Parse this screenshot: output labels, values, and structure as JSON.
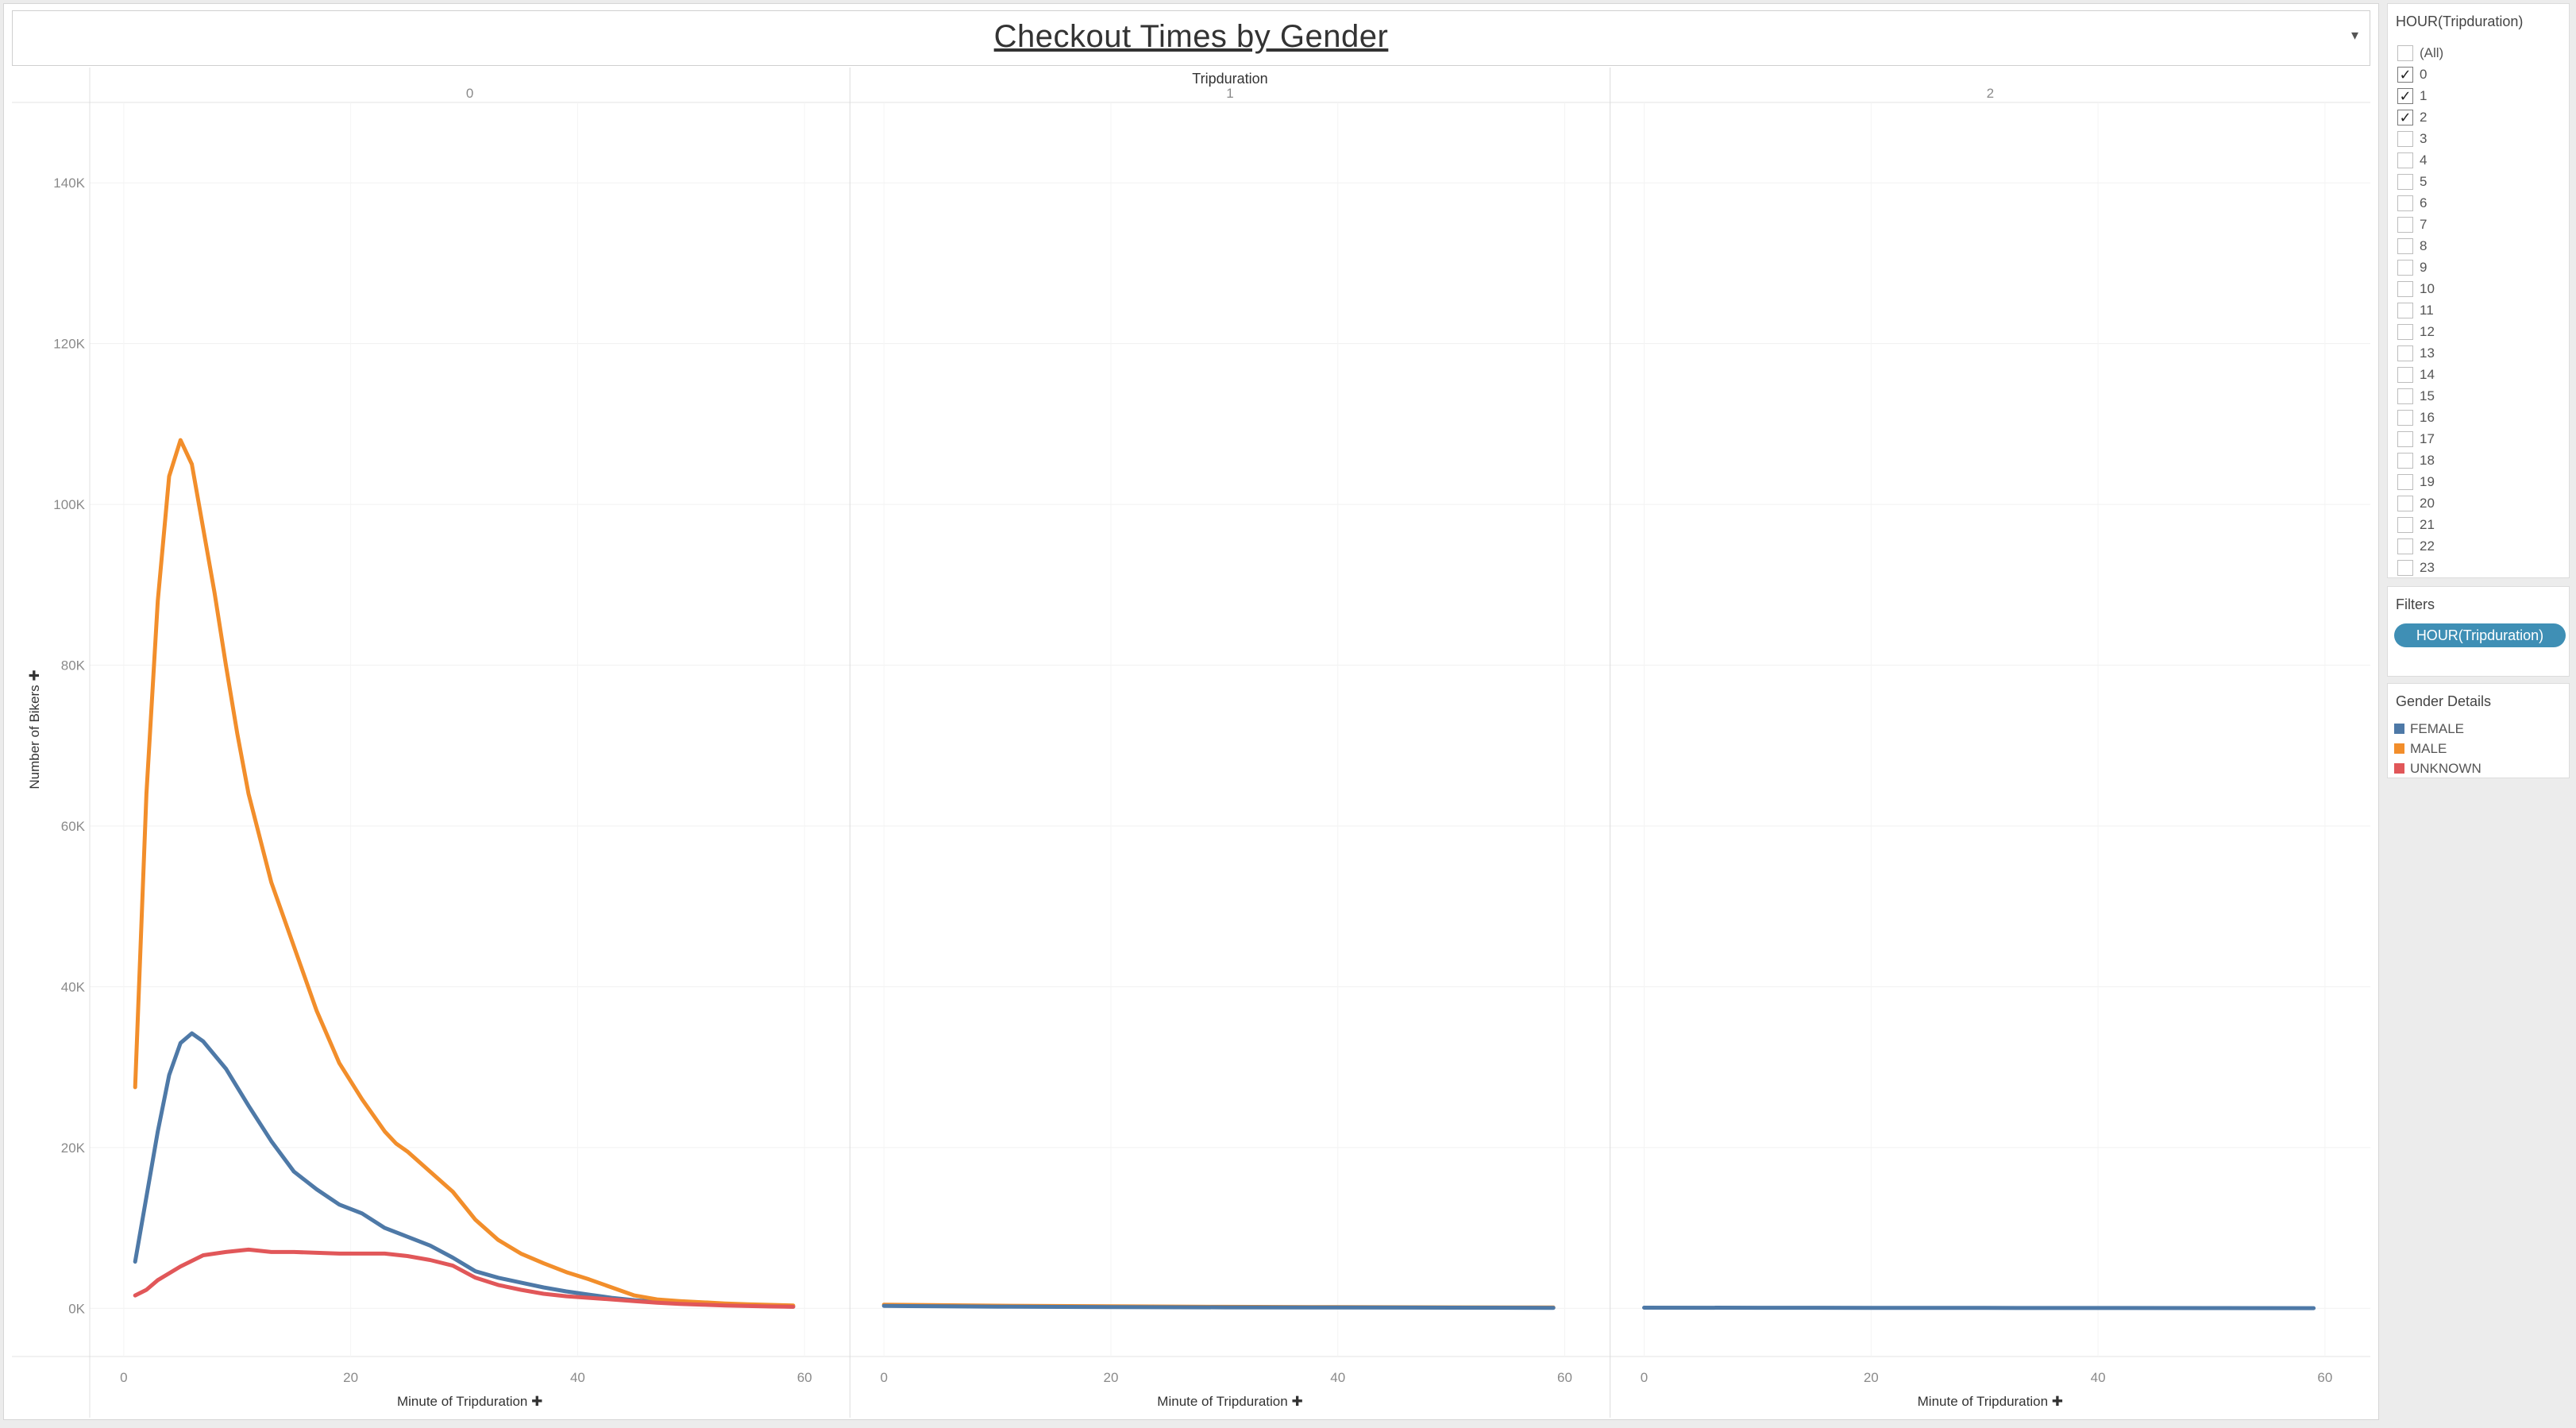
{
  "dashboard": {
    "title": "Checkout Times by Gender",
    "menu_glyph": "▾"
  },
  "chart_data": {
    "type": "line",
    "column_header": "Tripduration",
    "panels": [
      "0",
      "1",
      "2"
    ],
    "xlabel": "Minute of Tripduration",
    "ylabel": "Number of Bikers",
    "xlim": [
      -3,
      64
    ],
    "xticks": [
      0,
      20,
      40,
      60
    ],
    "ylim": [
      -6000,
      150000
    ],
    "yticks": [
      0,
      20000,
      40000,
      60000,
      80000,
      100000,
      120000,
      140000
    ],
    "ytick_labels": [
      "0K",
      "20K",
      "40K",
      "60K",
      "80K",
      "100K",
      "120K",
      "140K"
    ],
    "grid": true,
    "legend_position": "right",
    "series": [
      {
        "name": "FEMALE",
        "color": "#4e79a7",
        "panel": "0",
        "x": [
          1,
          3,
          4,
          5,
          6,
          7,
          9,
          11,
          13,
          15,
          17,
          19,
          21,
          23,
          25,
          27,
          29,
          31,
          33,
          35,
          37,
          39,
          41,
          43,
          45,
          47,
          49,
          51,
          53,
          55,
          57,
          59
        ],
        "y": [
          5800,
          22000,
          29000,
          33000,
          34200,
          33200,
          29800,
          25200,
          20800,
          17000,
          14800,
          12900,
          11800,
          10000,
          8900,
          7800,
          6300,
          4600,
          3800,
          3200,
          2600,
          2100,
          1700,
          1300,
          1000,
          800,
          620,
          500,
          400,
          330,
          260,
          200
        ]
      },
      {
        "name": "MALE",
        "color": "#f28e2b",
        "panel": "0",
        "x": [
          1,
          2,
          3,
          4,
          5,
          6,
          7,
          8,
          9,
          10,
          11,
          13,
          15,
          17,
          19,
          21,
          22,
          23,
          24,
          25,
          27,
          29,
          31,
          33,
          35,
          37,
          39,
          41,
          43,
          45,
          47,
          49,
          51,
          53,
          55,
          57,
          59
        ],
        "y": [
          27500,
          64000,
          88000,
          103500,
          108000,
          105000,
          97000,
          89000,
          80000,
          71500,
          64000,
          53000,
          45000,
          37000,
          30500,
          26000,
          24000,
          22000,
          20500,
          19500,
          17000,
          14500,
          11000,
          8500,
          6800,
          5600,
          4500,
          3600,
          2600,
          1600,
          1100,
          900,
          750,
          600,
          500,
          420,
          350
        ]
      },
      {
        "name": "UNKNOWN",
        "color": "#e15759",
        "panel": "0",
        "x": [
          1,
          2,
          3,
          5,
          7,
          9,
          11,
          13,
          15,
          17,
          19,
          21,
          23,
          25,
          27,
          29,
          31,
          33,
          35,
          37,
          39,
          41,
          43,
          45,
          47,
          49,
          51,
          53,
          55,
          57,
          59
        ],
        "y": [
          1600,
          2300,
          3500,
          5200,
          6600,
          7000,
          7300,
          7000,
          7000,
          6900,
          6800,
          6800,
          6800,
          6500,
          6000,
          5300,
          3800,
          2900,
          2300,
          1800,
          1500,
          1300,
          1100,
          900,
          700,
          550,
          450,
          350,
          280,
          220,
          180
        ]
      },
      {
        "name": "MALE",
        "color": "#f28e2b",
        "panel": "1",
        "x": [
          0,
          5,
          10,
          20,
          30,
          40,
          50,
          59
        ],
        "y": [
          450,
          380,
          320,
          240,
          180,
          150,
          120,
          100
        ]
      },
      {
        "name": "FEMALE",
        "color": "#4e79a7",
        "panel": "1",
        "x": [
          0,
          5,
          10,
          20,
          30,
          40,
          50,
          59
        ],
        "y": [
          300,
          240,
          200,
          150,
          120,
          100,
          80,
          60
        ]
      },
      {
        "name": "FEMALE",
        "color": "#4e79a7",
        "panel": "2",
        "x": [
          0,
          10,
          20,
          30,
          40,
          50,
          59
        ],
        "y": [
          80,
          70,
          60,
          50,
          40,
          30,
          20
        ]
      }
    ]
  },
  "sidebar": {
    "hour_filter": {
      "title": "HOUR(Tripduration)",
      "check_glyph": "✓",
      "items": [
        {
          "label": "(All)",
          "checked": false
        },
        {
          "label": "0",
          "checked": true
        },
        {
          "label": "1",
          "checked": true
        },
        {
          "label": "2",
          "checked": true
        },
        {
          "label": "3",
          "checked": false
        },
        {
          "label": "4",
          "checked": false
        },
        {
          "label": "5",
          "checked": false
        },
        {
          "label": "6",
          "checked": false
        },
        {
          "label": "7",
          "checked": false
        },
        {
          "label": "8",
          "checked": false
        },
        {
          "label": "9",
          "checked": false
        },
        {
          "label": "10",
          "checked": false
        },
        {
          "label": "11",
          "checked": false
        },
        {
          "label": "12",
          "checked": false
        },
        {
          "label": "13",
          "checked": false
        },
        {
          "label": "14",
          "checked": false
        },
        {
          "label": "15",
          "checked": false
        },
        {
          "label": "16",
          "checked": false
        },
        {
          "label": "17",
          "checked": false
        },
        {
          "label": "18",
          "checked": false
        },
        {
          "label": "19",
          "checked": false
        },
        {
          "label": "20",
          "checked": false
        },
        {
          "label": "21",
          "checked": false
        },
        {
          "label": "22",
          "checked": false
        },
        {
          "label": "23",
          "checked": false
        }
      ]
    },
    "filters": {
      "title": "Filters",
      "pill": "HOUR(Tripduration)"
    },
    "legend": {
      "title": "Gender Details",
      "items": [
        {
          "label": "FEMALE",
          "color": "#4e79a7"
        },
        {
          "label": "MALE",
          "color": "#f28e2b"
        },
        {
          "label": "UNKNOWN",
          "color": "#e15759"
        }
      ]
    }
  }
}
